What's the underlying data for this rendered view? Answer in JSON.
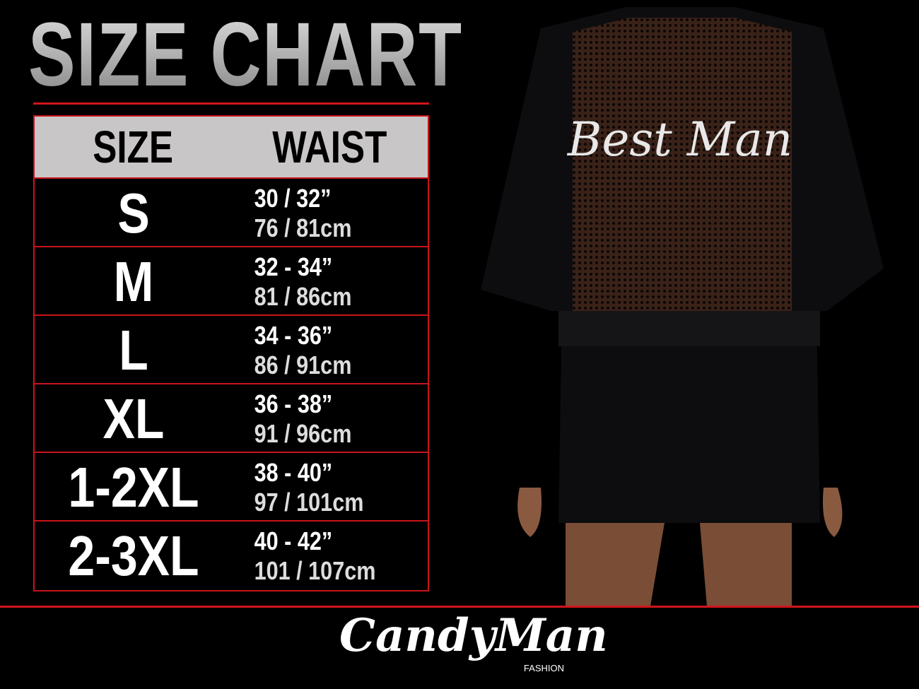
{
  "title": "SIZE CHART",
  "table": {
    "headers": [
      "SIZE",
      "WAIST"
    ],
    "rows": [
      {
        "size": "S",
        "in": "30 / 32”",
        "cm": "76 / 81cm"
      },
      {
        "size": "M",
        "in": "32 - 34”",
        "cm": "81 / 86cm"
      },
      {
        "size": "L",
        "in": "34 - 36”",
        "cm": "86 / 91cm"
      },
      {
        "size": "XL",
        "in": "36 - 38”",
        "cm": "91 / 96cm"
      },
      {
        "size": "1-2XL",
        "in": "38 - 40”",
        "cm": "97 / 101cm"
      },
      {
        "size": "2-3XL",
        "in": "40 - 42”",
        "cm": "101 / 107cm"
      }
    ]
  },
  "product": {
    "back_print": "Best Man"
  },
  "brand": {
    "name": "CandyMan",
    "sub": "FASHION"
  },
  "colors": {
    "accent": "#d0141a",
    "header_bg": "#c8c6c7",
    "background": "#000000"
  }
}
